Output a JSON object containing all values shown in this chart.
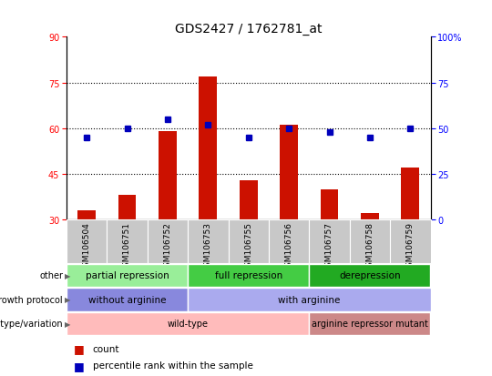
{
  "title": "GDS2427 / 1762781_at",
  "samples": [
    "GSM106504",
    "GSM106751",
    "GSM106752",
    "GSM106753",
    "GSM106755",
    "GSM106756",
    "GSM106757",
    "GSM106758",
    "GSM106759"
  ],
  "bar_values": [
    33,
    38,
    59,
    77,
    43,
    61,
    40,
    32,
    47
  ],
  "dot_values_pct": [
    45,
    50,
    55,
    52,
    45,
    50,
    48,
    45,
    50
  ],
  "ylim_left": [
    30,
    90
  ],
  "ylim_right": [
    0,
    100
  ],
  "yticks_left": [
    30,
    45,
    60,
    75,
    90
  ],
  "yticks_right": [
    0,
    25,
    50,
    75,
    100
  ],
  "ytick_right_labels": [
    "0",
    "25",
    "50",
    "75",
    "100%"
  ],
  "bar_color": "#cc1100",
  "dot_color": "#0000bb",
  "other_groups": [
    {
      "label": "partial repression",
      "start": 0,
      "end": 3,
      "color": "#99ee99"
    },
    {
      "label": "full repression",
      "start": 3,
      "end": 6,
      "color": "#44cc44"
    },
    {
      "label": "derepression",
      "start": 6,
      "end": 9,
      "color": "#22aa22"
    }
  ],
  "growth_groups": [
    {
      "label": "without arginine",
      "start": 0,
      "end": 3,
      "color": "#8888dd"
    },
    {
      "label": "with arginine",
      "start": 3,
      "end": 9,
      "color": "#aaaaee"
    }
  ],
  "genotype_groups": [
    {
      "label": "wild-type",
      "start": 0,
      "end": 6,
      "color": "#ffbbbb"
    },
    {
      "label": "arginine repressor mutant",
      "start": 6,
      "end": 9,
      "color": "#cc8888"
    }
  ],
  "row_labels": [
    "other",
    "growth protocol",
    "genotype/variation"
  ],
  "legend_bar_label": "count",
  "legend_dot_label": "percentile rank within the sample",
  "title_fontsize": 10,
  "tick_fontsize": 7,
  "annot_fontsize": 7.5,
  "grid_yticks": [
    45,
    60,
    75
  ]
}
